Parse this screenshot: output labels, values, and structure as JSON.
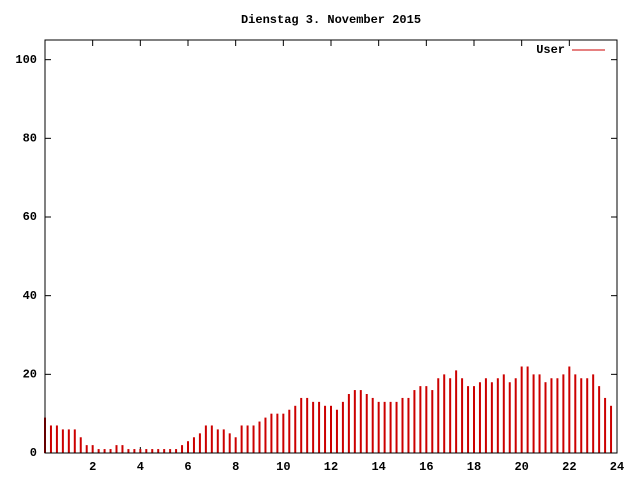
{
  "chart_data": {
    "type": "impulse",
    "title": "Dienstag 3. November 2015",
    "x": [
      0,
      0.25,
      0.5,
      0.75,
      1,
      1.25,
      1.5,
      1.75,
      2,
      2.25,
      2.5,
      2.75,
      3,
      3.25,
      3.5,
      3.75,
      4,
      4.25,
      4.5,
      4.75,
      5,
      5.25,
      5.5,
      5.75,
      6,
      6.25,
      6.5,
      6.75,
      7,
      7.25,
      7.5,
      7.75,
      8,
      8.25,
      8.5,
      8.75,
      9,
      9.25,
      9.5,
      9.75,
      10,
      10.25,
      10.5,
      10.75,
      11,
      11.25,
      11.5,
      11.75,
      12,
      12.25,
      12.5,
      12.75,
      13,
      13.25,
      13.5,
      13.75,
      14,
      14.25,
      14.5,
      14.75,
      15,
      15.25,
      15.5,
      15.75,
      16,
      16.25,
      16.5,
      16.75,
      17,
      17.25,
      17.5,
      17.75,
      18,
      18.25,
      18.5,
      18.75,
      19,
      19.25,
      19.5,
      19.75,
      20,
      20.25,
      20.5,
      20.75,
      21,
      21.25,
      21.5,
      21.75,
      22,
      22.25,
      22.5,
      22.75,
      23,
      23.25,
      23.5,
      23.75
    ],
    "series": [
      {
        "name": "User",
        "color": "#cc0000",
        "values": [
          9,
          7,
          7,
          6,
          6,
          6,
          4,
          2,
          2,
          1,
          1,
          1,
          2,
          2,
          1,
          1,
          1,
          1,
          1,
          1,
          1,
          1,
          1,
          2,
          3,
          4,
          5,
          7,
          7,
          6,
          6,
          5,
          4,
          7,
          7,
          7,
          8,
          9,
          10,
          10,
          10,
          11,
          12,
          14,
          14,
          13,
          13,
          12,
          12,
          11,
          13,
          15,
          16,
          16,
          15,
          14,
          13,
          13,
          13,
          13,
          14,
          14,
          16,
          17,
          17,
          16,
          19,
          20,
          19,
          21,
          19,
          17,
          17,
          18,
          19,
          18,
          19,
          20,
          18,
          19,
          22,
          22,
          20,
          20,
          18,
          19,
          19,
          20,
          22,
          20,
          19,
          19,
          20,
          17,
          14,
          12
        ]
      }
    ],
    "xlim": [
      0,
      24
    ],
    "xticks": [
      2,
      4,
      6,
      8,
      10,
      12,
      14,
      16,
      18,
      20,
      22,
      24
    ],
    "ylim": [
      0,
      105
    ],
    "yticks": [
      0,
      20,
      40,
      60,
      80,
      100
    ],
    "legend": "top-right"
  }
}
